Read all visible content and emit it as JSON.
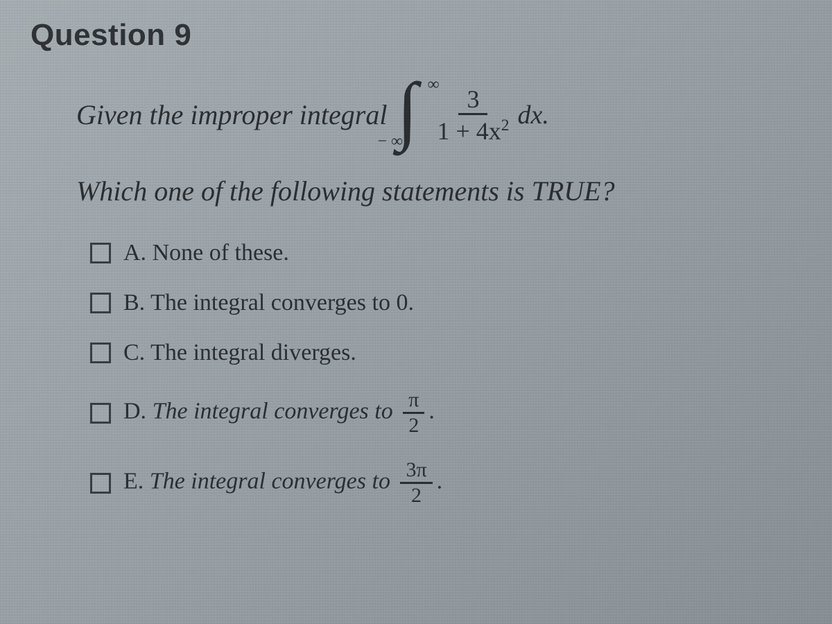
{
  "page": {
    "background_gradient": [
      "#a8b0b5",
      "#9aa2a8",
      "#8a9298"
    ],
    "text_color": "#2b2f33"
  },
  "question": {
    "title": "Question 9",
    "stem_lead": "Given the improper integral",
    "integral": {
      "upper_limit": "∞",
      "lower_limit": "− ∞",
      "numerator": "3",
      "denominator_prefix": "1 + 4",
      "denominator_var": "x",
      "denominator_exp": "2",
      "differential": "dx."
    },
    "stem_tail": "Which one of the following statements is TRUE?",
    "options": [
      {
        "letter": "A.",
        "text": "None of these.",
        "italic": false,
        "fraction": null
      },
      {
        "letter": "B.",
        "text": "The integral converges to 0.",
        "italic": false,
        "fraction": null
      },
      {
        "letter": "C.",
        "text": "The integral diverges.",
        "italic": false,
        "fraction": null
      },
      {
        "letter": "D.",
        "text": "The integral converges to",
        "italic": true,
        "fraction": {
          "num": "π",
          "den": "2"
        },
        "tail": "."
      },
      {
        "letter": "E.",
        "text": "The integral converges to",
        "italic": true,
        "fraction": {
          "num": "3π",
          "den": "2"
        },
        "tail": "."
      }
    ]
  },
  "styles": {
    "title_fontsize": 44,
    "stem_fontsize": 40,
    "option_fontsize": 34,
    "checkbox_size": 30,
    "checkbox_border_color": "#3b3f43",
    "fraction_rule_color": "#2b2f33"
  }
}
